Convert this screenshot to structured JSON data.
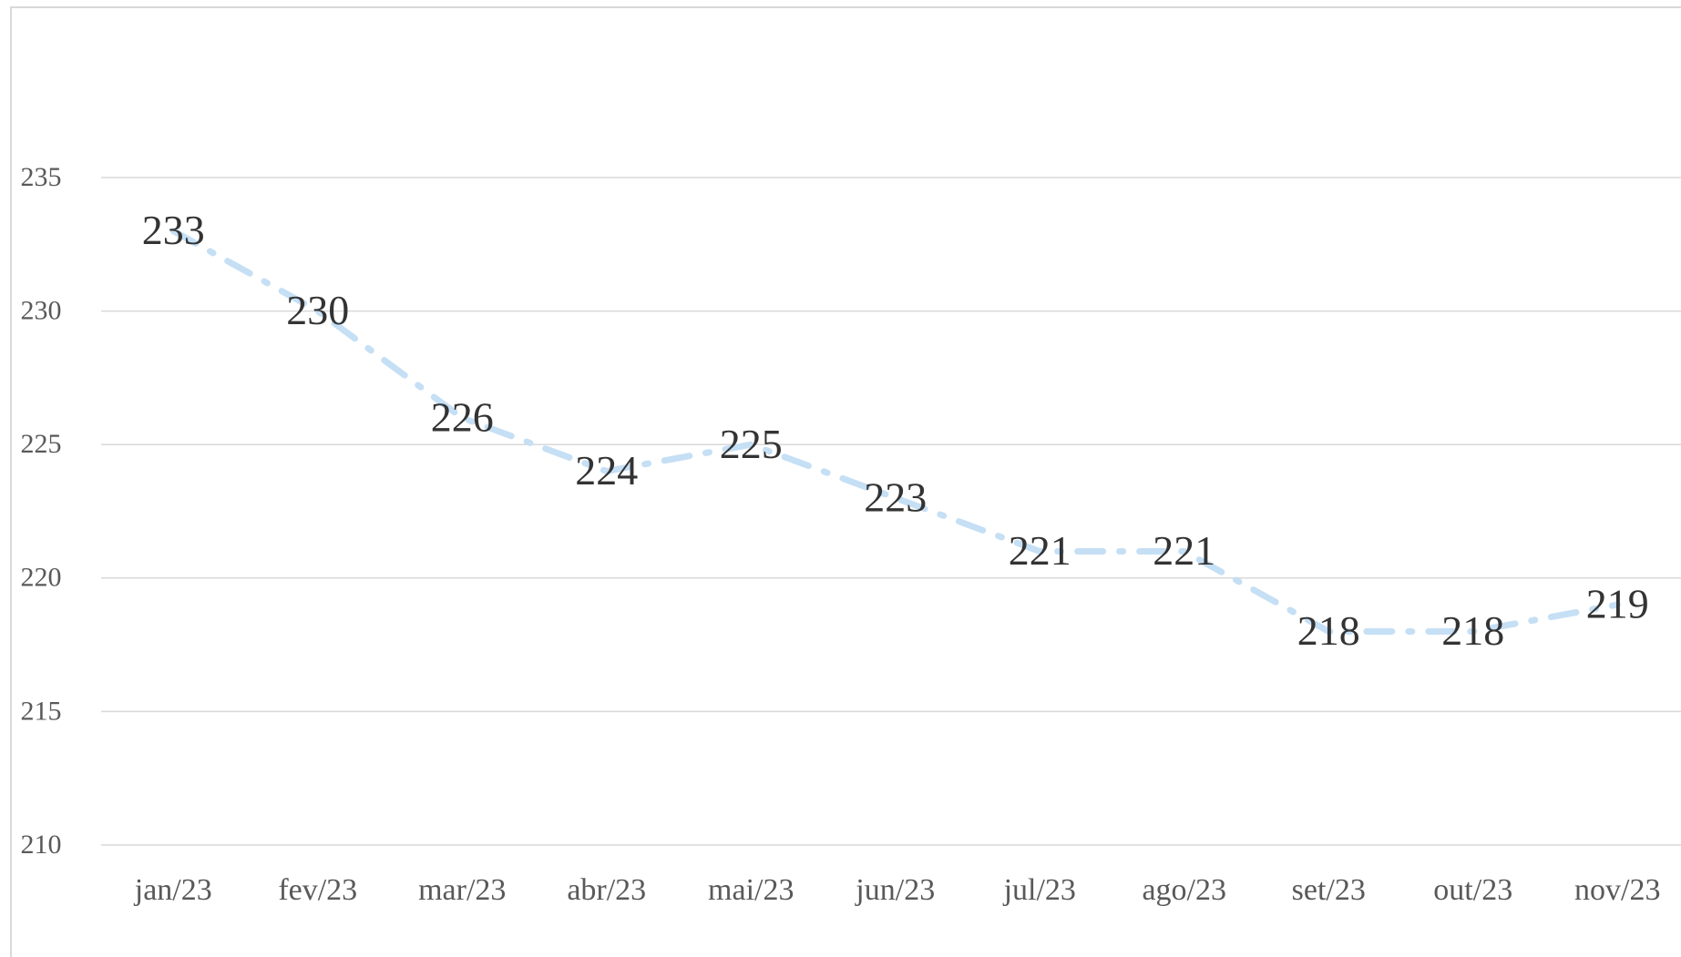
{
  "chart_data": {
    "type": "line",
    "categories": [
      "jan/23",
      "fev/23",
      "mar/23",
      "abr/23",
      "mai/23",
      "jun/23",
      "jul/23",
      "ago/23",
      "set/23",
      "out/23",
      "nov/23"
    ],
    "series": [
      {
        "color": "#c5dff5",
        "values": [
          233,
          230,
          226,
          224,
          225,
          223,
          221,
          221,
          218,
          218,
          219
        ]
      }
    ],
    "ylim": [
      210,
      235
    ],
    "yticks": [
      210,
      215,
      220,
      225,
      230,
      235
    ],
    "grid": true,
    "data_labels": true
  }
}
